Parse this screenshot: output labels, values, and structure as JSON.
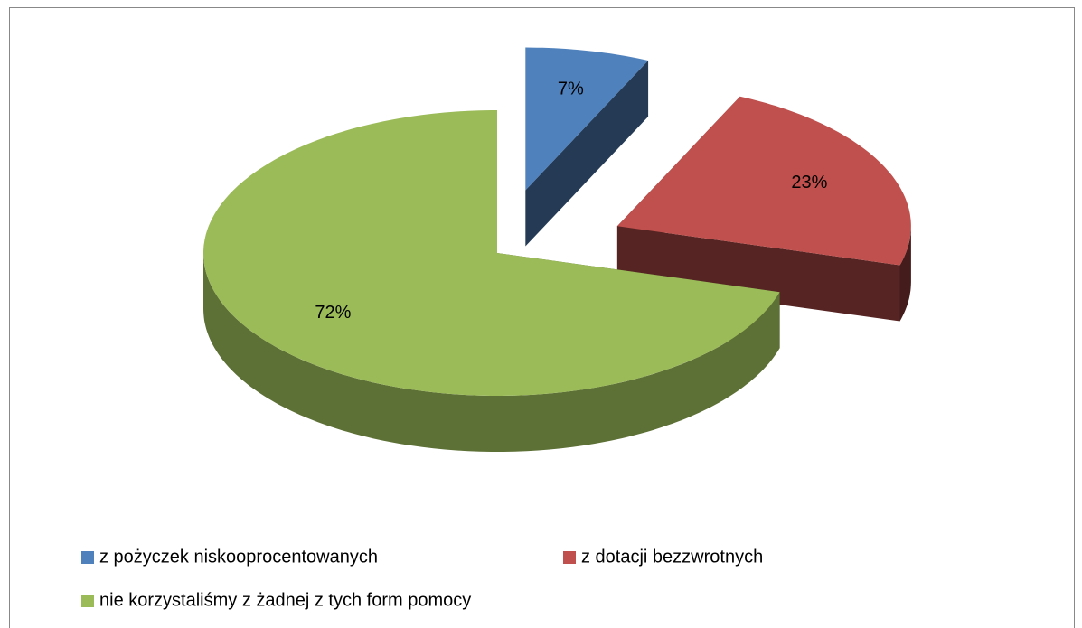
{
  "chart_data": {
    "type": "pie",
    "view": "3d",
    "categories": [
      "z pożyczek niskooprocentowanych",
      "z dotacji bezzwrotnych",
      "nie korzystaliśmy z żadnej z tych form pomocy"
    ],
    "values": [
      7,
      23,
      72
    ],
    "value_labels": [
      "7%",
      "23%",
      "72%"
    ],
    "colors": [
      "#4f81bd",
      "#c0504d",
      "#9bbb59"
    ],
    "legend": "bottom"
  }
}
